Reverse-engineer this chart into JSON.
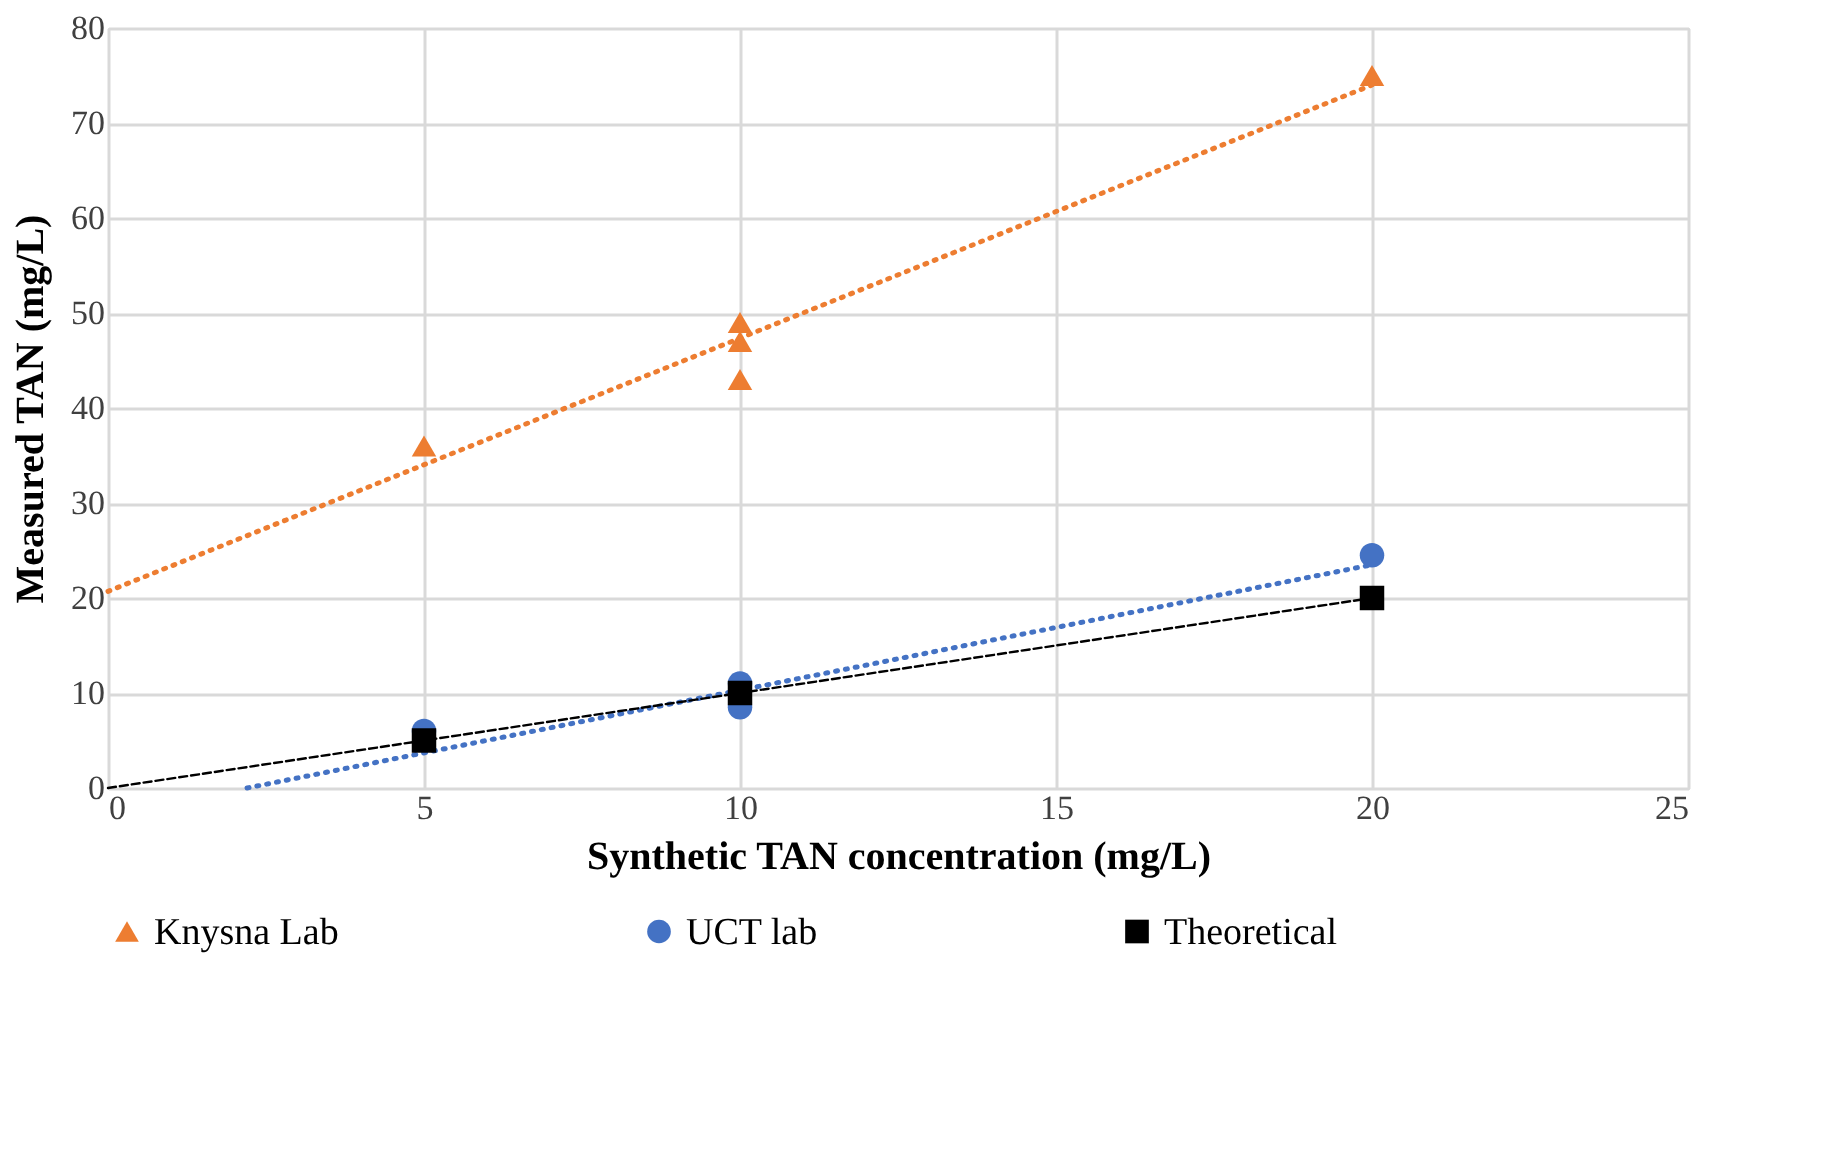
{
  "chart_data": {
    "type": "scatter",
    "xlabel": "Synthetic TAN concentration (mg/L)",
    "ylabel": "Measured TAN (mg/L)",
    "xlim": [
      0,
      25
    ],
    "xticks": [
      0,
      5,
      10,
      15,
      20,
      25
    ],
    "ylim": [
      0,
      80
    ],
    "yticks": [
      0,
      10,
      20,
      30,
      40,
      50,
      60,
      70,
      80
    ],
    "grid": true,
    "legend": "bottom",
    "series": [
      {
        "type": "line",
        "color": "#ed7d31",
        "line_style": "dotted",
        "marker": "none",
        "x": [
          0,
          20
        ],
        "values": [
          20.7,
          74
        ]
      },
      {
        "type": "line",
        "color": "#4472c4",
        "line_style": "dotted",
        "marker": "none",
        "x": [
          2.2,
          20
        ],
        "values": [
          0,
          23.5
        ]
      },
      {
        "type": "line",
        "color": "#000000",
        "line_style": "dashed",
        "marker": "none",
        "x": [
          0,
          20
        ],
        "values": [
          0,
          20
        ]
      },
      {
        "name": "Knysna Lab",
        "color": "#ed7d31",
        "marker": "triangle",
        "x": [
          5,
          10,
          10,
          10,
          20
        ],
        "values": [
          36,
          49,
          47,
          43,
          75
        ]
      },
      {
        "name": "UCT lab",
        "color": "#4472c4",
        "marker": "circle",
        "x": [
          5,
          10,
          10,
          20
        ],
        "values": [
          6,
          11,
          8.5,
          24.5
        ]
      },
      {
        "name": "Theoretical",
        "color": "#000000",
        "marker": "square",
        "x": [
          5,
          10,
          20
        ],
        "values": [
          5,
          10,
          20
        ]
      }
    ]
  }
}
